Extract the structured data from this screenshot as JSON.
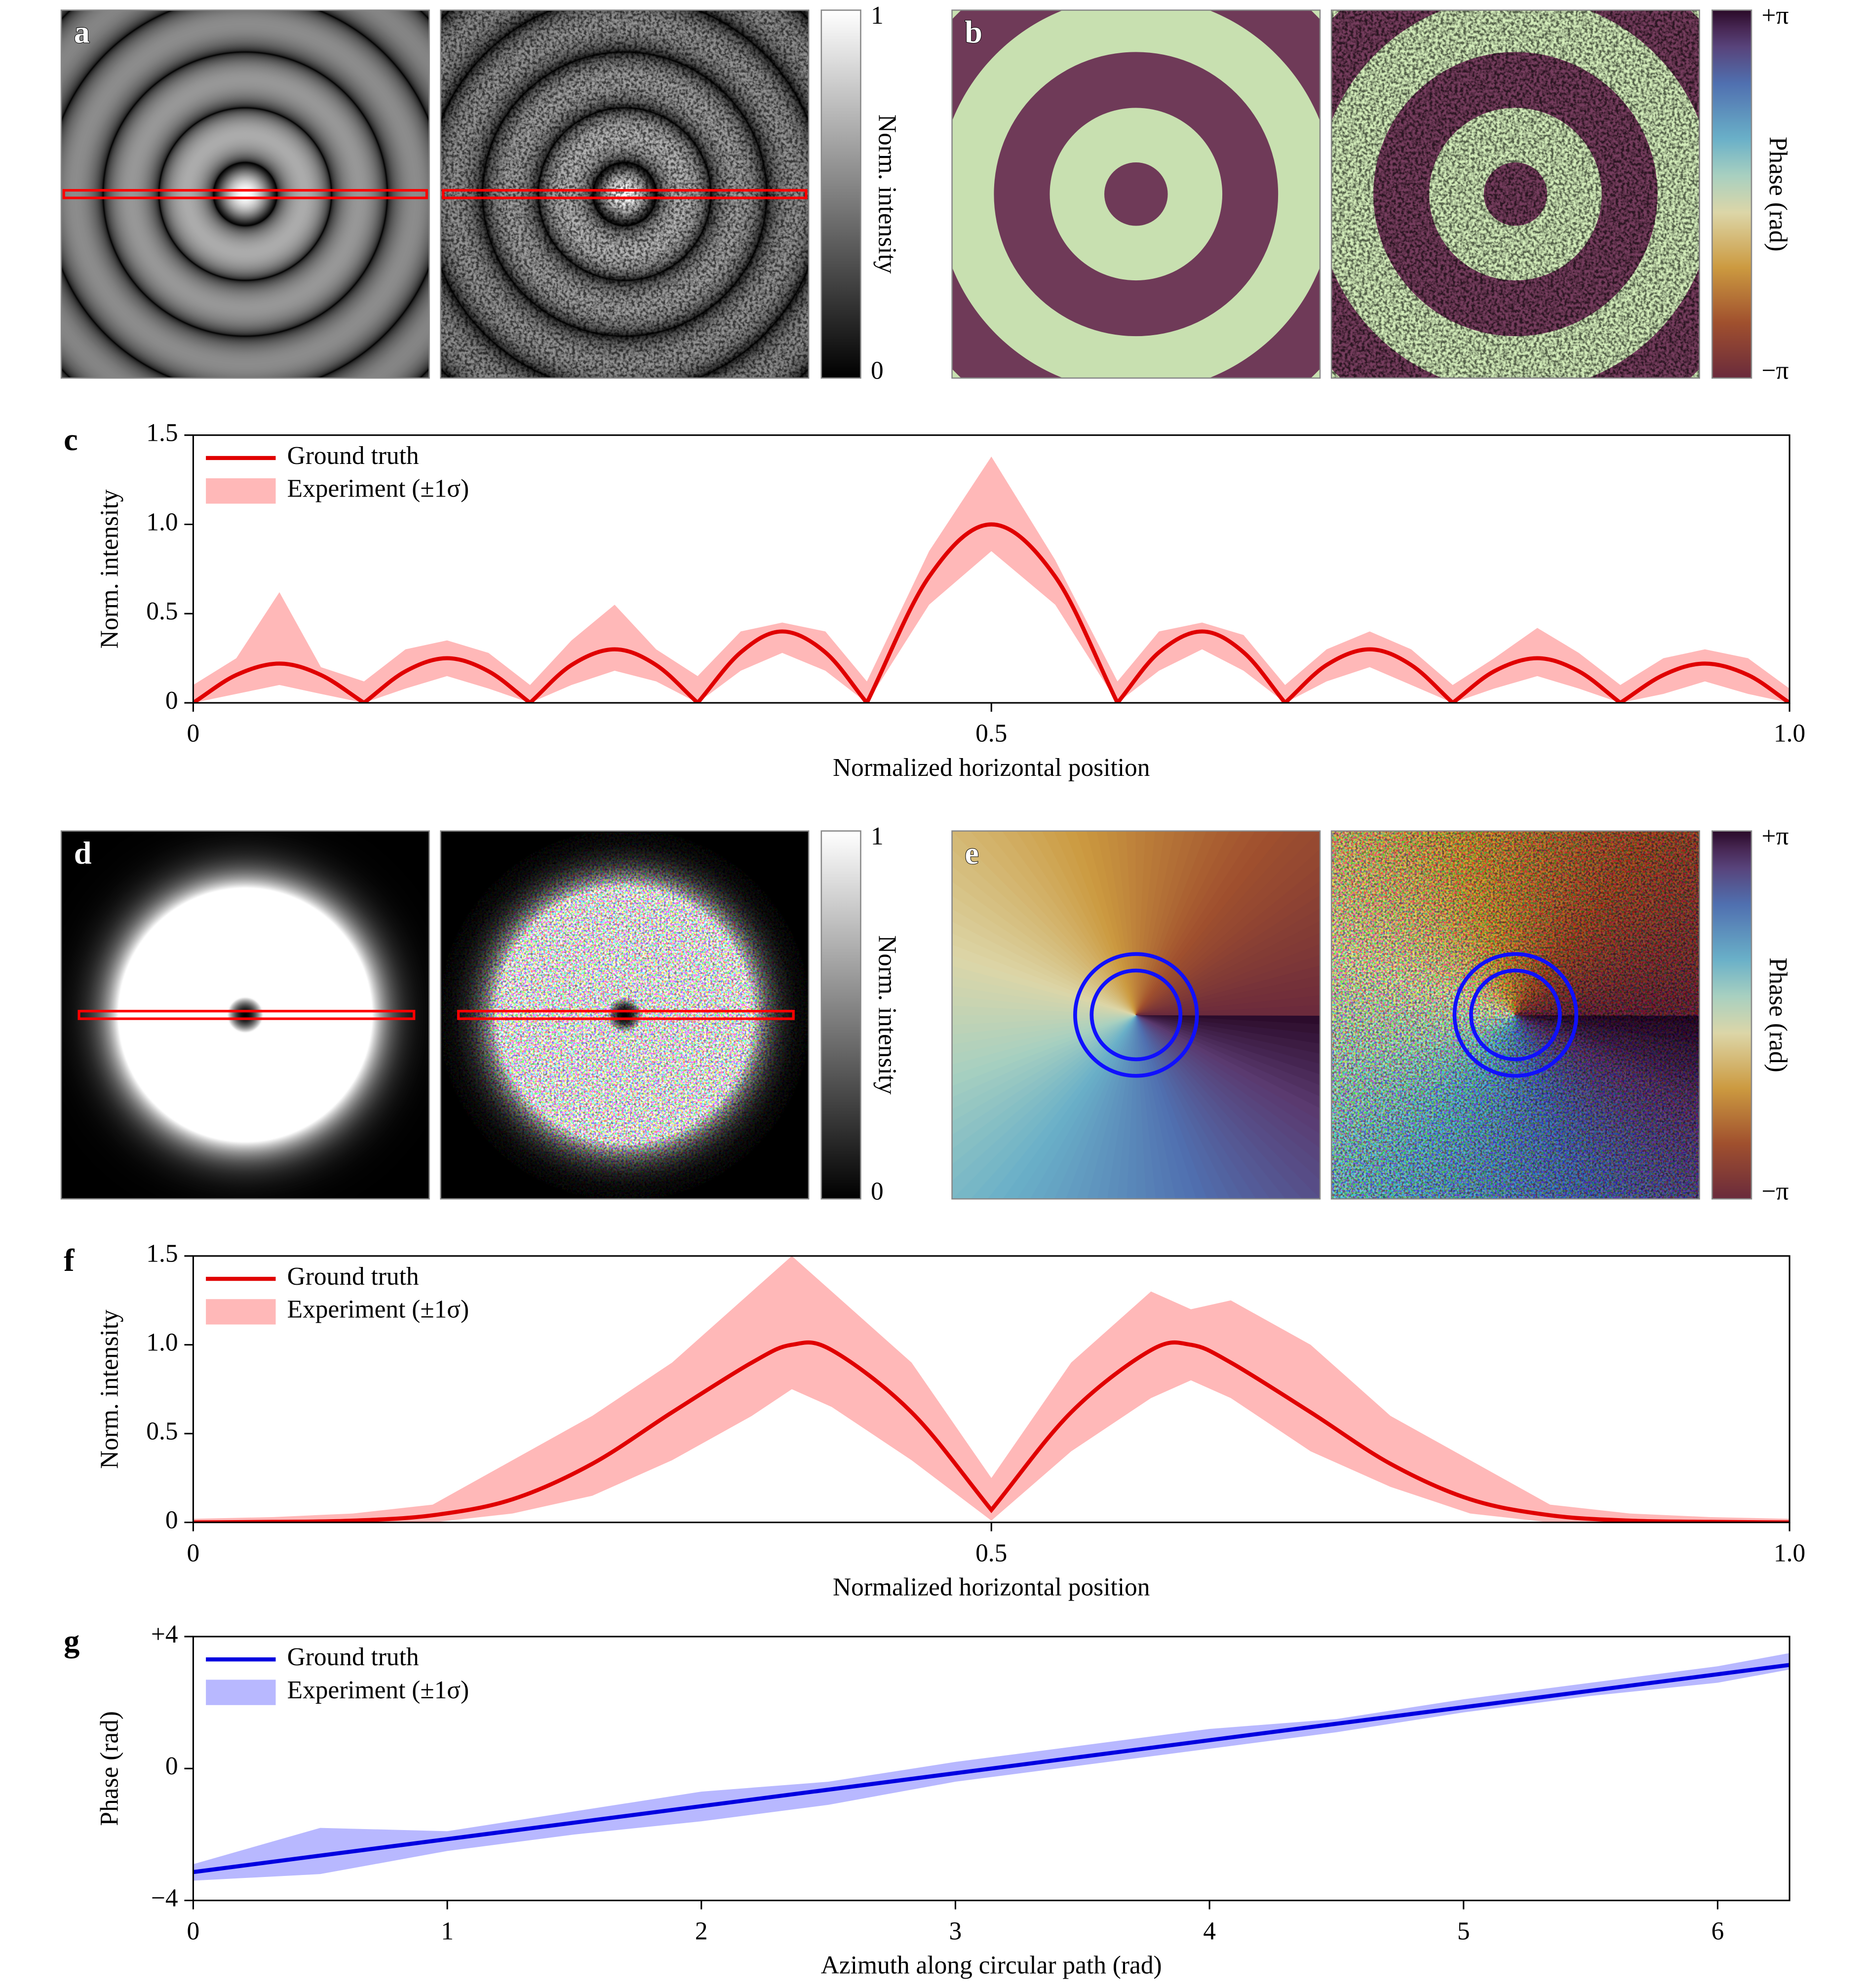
{
  "images": [
    {
      "panel": "a",
      "colorbar": {
        "label": "Norm. intensity",
        "ticks": [
          "1",
          "0"
        ]
      }
    },
    {
      "panel": "b",
      "colorbar": {
        "label": "Phase (rad)",
        "ticks": [
          "+π",
          "−π"
        ]
      }
    },
    {
      "panel": "d",
      "colorbar": {
        "label": "Norm. intensity",
        "ticks": [
          "1",
          "0"
        ]
      }
    },
    {
      "panel": "e",
      "colorbar": {
        "label": "Phase (rad)",
        "ticks": [
          "+π",
          "−π"
        ]
      }
    }
  ],
  "chart_data": [
    {
      "type": "line",
      "panel": "c",
      "xlabel": "Normalized horizontal position",
      "ylabel": "Norm. intensity",
      "xlim": [
        0,
        1
      ],
      "ylim": [
        0,
        1.5
      ],
      "xticks": [
        0,
        0.5,
        {
          "value": 1,
          "label": "1.0"
        }
      ],
      "yticks": [
        0,
        0.5,
        {
          "value": 1,
          "label": "1.0"
        },
        1.5
      ],
      "legend": "upper left",
      "series": [
        {
          "name": "Ground truth",
          "color": "#e00000",
          "x": [
            0,
            0.027,
            0.054,
            0.08,
            0.107,
            0.133,
            0.159,
            0.185,
            0.211,
            0.237,
            0.264,
            0.29,
            0.316,
            0.343,
            0.369,
            0.396,
            0.422,
            0.461,
            0.5,
            0.54,
            0.579,
            0.605,
            0.632,
            0.658,
            0.684,
            0.71,
            0.737,
            0.763,
            0.789,
            0.815,
            0.842,
            0.868,
            0.894,
            0.921,
            0.947,
            0.974,
            1
          ],
          "values": [
            0,
            0.156,
            0.22,
            0.156,
            0,
            0.177,
            0.25,
            0.177,
            0,
            0.212,
            0.3,
            0.212,
            0,
            0.283,
            0.4,
            0.283,
            0,
            0.707,
            1,
            0.707,
            0,
            0.283,
            0.4,
            0.283,
            0,
            0.212,
            0.3,
            0.212,
            0,
            0.177,
            0.25,
            0.177,
            0,
            0.156,
            0.22,
            0.156,
            0
          ]
        },
        {
          "name": "Experiment (±1σ)",
          "color": "#ffb8b8",
          "type": "band",
          "x": [
            0,
            0.027,
            0.054,
            0.08,
            0.107,
            0.133,
            0.159,
            0.185,
            0.211,
            0.237,
            0.264,
            0.29,
            0.316,
            0.343,
            0.369,
            0.396,
            0.422,
            0.461,
            0.5,
            0.54,
            0.579,
            0.605,
            0.632,
            0.658,
            0.684,
            0.71,
            0.737,
            0.763,
            0.789,
            0.815,
            0.842,
            0.868,
            0.894,
            0.921,
            0.947,
            0.974,
            1
          ],
          "upper": [
            0.1,
            0.25,
            0.62,
            0.2,
            0.12,
            0.3,
            0.35,
            0.28,
            0.1,
            0.35,
            0.55,
            0.3,
            0.15,
            0.4,
            0.45,
            0.4,
            0.12,
            0.85,
            1.38,
            0.8,
            0.12,
            0.4,
            0.45,
            0.38,
            0.1,
            0.3,
            0.4,
            0.3,
            0.1,
            0.25,
            0.42,
            0.28,
            0.1,
            0.25,
            0.3,
            0.25,
            0.08
          ],
          "lower": [
            0,
            0.05,
            0.1,
            0.05,
            0,
            0.08,
            0.15,
            0.08,
            0,
            0.1,
            0.18,
            0.12,
            0,
            0.18,
            0.28,
            0.18,
            0,
            0.55,
            0.85,
            0.55,
            0,
            0.18,
            0.3,
            0.18,
            0,
            0.12,
            0.2,
            0.1,
            0,
            0.08,
            0.15,
            0.08,
            0,
            0.05,
            0.12,
            0.05,
            0
          ]
        }
      ]
    },
    {
      "type": "line",
      "panel": "f",
      "xlabel": "Normalized horizontal position",
      "ylabel": "Norm. intensity",
      "xlim": [
        0,
        1
      ],
      "ylim": [
        0,
        1.5
      ],
      "xticks": [
        0,
        0.5,
        {
          "value": 1,
          "label": "1.0"
        }
      ],
      "yticks": [
        0,
        0.5,
        {
          "value": 1,
          "label": "1.0"
        },
        1.5
      ],
      "legend": "upper left",
      "series": [
        {
          "name": "Ground truth",
          "color": "#e00000",
          "x": [
            0,
            0.05,
            0.1,
            0.15,
            0.2,
            0.25,
            0.3,
            0.35,
            0.375,
            0.4,
            0.45,
            0.5,
            0.55,
            0.6,
            0.625,
            0.65,
            0.7,
            0.75,
            0.8,
            0.85,
            0.9,
            0.95,
            1
          ],
          "values": [
            0,
            0.003,
            0.01,
            0.04,
            0.13,
            0.33,
            0.62,
            0.9,
            1,
            0.97,
            0.62,
            0.07,
            0.62,
            0.97,
            1,
            0.9,
            0.62,
            0.33,
            0.13,
            0.04,
            0.01,
            0.003,
            0
          ]
        },
        {
          "name": "Experiment (±1σ)",
          "color": "#ffb8b8",
          "type": "band",
          "x": [
            0,
            0.05,
            0.1,
            0.15,
            0.2,
            0.25,
            0.3,
            0.35,
            0.375,
            0.4,
            0.45,
            0.5,
            0.55,
            0.6,
            0.625,
            0.65,
            0.7,
            0.75,
            0.8,
            0.85,
            0.9,
            0.95,
            1
          ],
          "upper": [
            0.02,
            0.03,
            0.05,
            0.1,
            0.35,
            0.6,
            0.9,
            1.3,
            1.5,
            1.3,
            0.9,
            0.25,
            0.9,
            1.3,
            1.2,
            1.25,
            1.0,
            0.6,
            0.35,
            0.1,
            0.05,
            0.03,
            0.02
          ],
          "lower": [
            0,
            0,
            0,
            0,
            0.05,
            0.15,
            0.35,
            0.6,
            0.75,
            0.65,
            0.35,
            0.01,
            0.4,
            0.7,
            0.8,
            0.7,
            0.4,
            0.2,
            0.05,
            0,
            0,
            0,
            0
          ]
        }
      ]
    },
    {
      "type": "line",
      "panel": "g",
      "xlabel": "Azimuth along circular path (rad)",
      "ylabel": "Phase (rad)",
      "xlim": [
        0,
        6.283
      ],
      "ylim": [
        -4,
        4
      ],
      "xticks": [
        0,
        1,
        2,
        3,
        4,
        5,
        6
      ],
      "yticks": [
        {
          "value": -4,
          "label": "−4"
        },
        0,
        {
          "value": 4,
          "label": "+4"
        }
      ],
      "legend": "upper left",
      "series": [
        {
          "name": "Ground truth",
          "color": "#0000e0",
          "x": [
            0,
            6.283
          ],
          "values": [
            -3.14,
            3.14
          ]
        },
        {
          "name": "Experiment (±1σ)",
          "color": "#b8b8ff",
          "type": "band",
          "x": [
            0,
            0.5,
            1,
            1.5,
            2,
            2.5,
            3,
            3.5,
            4,
            4.5,
            5,
            5.5,
            6,
            6.283
          ],
          "upper": [
            -2.9,
            -1.8,
            -1.9,
            -1.3,
            -0.7,
            -0.4,
            0.2,
            0.7,
            1.2,
            1.5,
            2.1,
            2.6,
            3.1,
            3.5
          ],
          "lower": [
            -3.4,
            -3.2,
            -2.5,
            -2.0,
            -1.6,
            -1.1,
            -0.4,
            0.1,
            0.6,
            1.1,
            1.7,
            2.2,
            2.6,
            3.0
          ]
        }
      ]
    }
  ]
}
